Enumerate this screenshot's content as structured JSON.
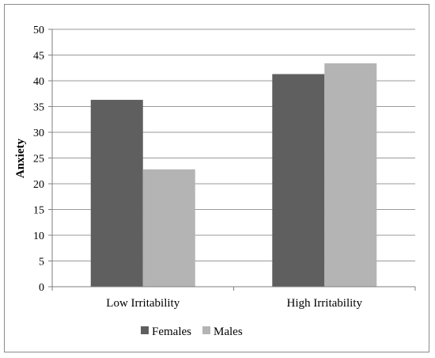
{
  "chart_data": {
    "type": "bar",
    "categories": [
      "Low Irritability",
      "High Irritability"
    ],
    "series": [
      {
        "name": "Females",
        "values": [
          36.3,
          41.3
        ],
        "color": "#5f5f5f"
      },
      {
        "name": "Males",
        "values": [
          22.8,
          43.4
        ],
        "color": "#b4b4b4"
      }
    ],
    "ylabel": "Anxiety",
    "xlabel": "",
    "ylim": [
      0,
      50
    ],
    "yticks": [
      "0",
      "5",
      "10",
      "15",
      "20",
      "25",
      "30",
      "35",
      "40",
      "45",
      "50"
    ],
    "grid": true,
    "legend_position": "bottom"
  }
}
